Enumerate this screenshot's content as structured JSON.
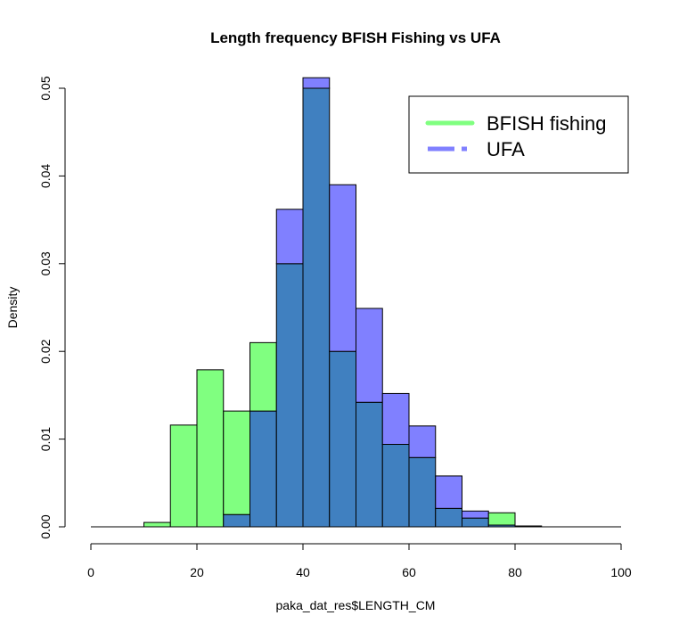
{
  "chart_data": {
    "type": "bar",
    "title": "Length frequency BFISH Fishing vs UFA",
    "xlabel": "paka_dat_res$LENGTH_CM",
    "ylabel": "Density",
    "xlim": [
      0,
      100
    ],
    "ylim": [
      0,
      0.05
    ],
    "x_ticks": [
      "0",
      "20",
      "40",
      "60",
      "80",
      "100"
    ],
    "y_ticks": [
      "0.00",
      "0.01",
      "0.02",
      "0.03",
      "0.04",
      "0.05"
    ],
    "bin_edges": [
      10,
      15,
      20,
      25,
      30,
      35,
      40,
      45,
      50,
      55,
      60,
      65,
      70,
      75,
      80,
      85
    ],
    "baseline_range": [
      0,
      100
    ],
    "series": [
      {
        "name": "BFISH fishing",
        "color": "#80ff80",
        "values": [
          0.0005,
          0.0116,
          0.0179,
          0.0132,
          0.021,
          0.03,
          0.05,
          0.02,
          0.0142,
          0.0094,
          0.0079,
          0.0021,
          0.001,
          0.0016,
          0.0001
        ]
      },
      {
        "name": "UFA",
        "color": "#8080ff",
        "values": [
          0,
          0,
          0,
          0.0014,
          0.0132,
          0.0362,
          0.0512,
          0.039,
          0.0249,
          0.0152,
          0.0115,
          0.0058,
          0.0018,
          0.0002,
          0
        ]
      }
    ],
    "overlap_color": "#4080c0",
    "legend": {
      "position": "top-right",
      "entries": [
        "BFISH fishing",
        "UFA"
      ]
    }
  }
}
